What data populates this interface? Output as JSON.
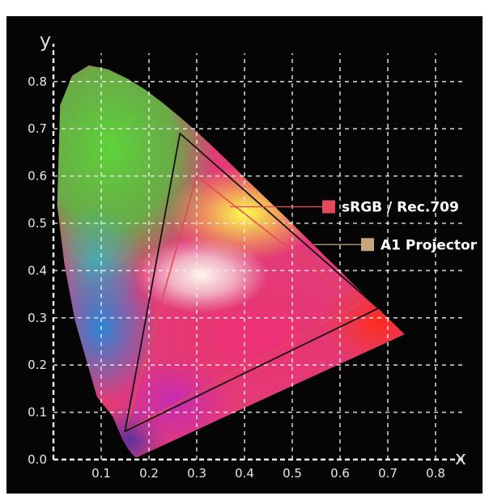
{
  "chart_data": {
    "type": "scatter",
    "title": "",
    "xlabel": "x",
    "ylabel": "y",
    "xlim": [
      0,
      0.8
    ],
    "ylim": [
      0,
      0.85
    ],
    "x_ticks": [
      0.1,
      0.2,
      0.3,
      0.4,
      0.5,
      0.6,
      0.7,
      0.8
    ],
    "y_ticks": [
      0.0,
      0.1,
      0.2,
      0.3,
      0.4,
      0.5,
      0.6,
      0.7,
      0.8
    ],
    "x_tick_labels": [
      "0.1",
      "0.2",
      "0.3",
      "0.4",
      "0.5",
      "0.6",
      "0.7",
      "0.8"
    ],
    "y_tick_labels": [
      "0.0",
      "0.1",
      "0.2",
      "0.3",
      "0.4",
      "0.5",
      "0.6",
      "0.7",
      "0.8"
    ],
    "grid": true,
    "spectral_locus": [
      [
        0.175,
        0.005
      ],
      [
        0.172,
        0.005
      ],
      [
        0.167,
        0.009
      ],
      [
        0.156,
        0.023
      ],
      [
        0.144,
        0.044
      ],
      [
        0.124,
        0.091
      ],
      [
        0.091,
        0.133
      ],
      [
        0.045,
        0.295
      ],
      [
        0.023,
        0.413
      ],
      [
        0.008,
        0.538
      ],
      [
        0.014,
        0.75
      ],
      [
        0.039,
        0.812
      ],
      [
        0.074,
        0.834
      ],
      [
        0.114,
        0.826
      ],
      [
        0.155,
        0.806
      ],
      [
        0.193,
        0.782
      ],
      [
        0.23,
        0.754
      ],
      [
        0.266,
        0.724
      ],
      [
        0.302,
        0.692
      ],
      [
        0.337,
        0.659
      ],
      [
        0.373,
        0.624
      ],
      [
        0.408,
        0.589
      ],
      [
        0.444,
        0.554
      ],
      [
        0.479,
        0.52
      ],
      [
        0.513,
        0.486
      ],
      [
        0.545,
        0.454
      ],
      [
        0.575,
        0.424
      ],
      [
        0.603,
        0.397
      ],
      [
        0.627,
        0.372
      ],
      [
        0.648,
        0.351
      ],
      [
        0.666,
        0.334
      ],
      [
        0.68,
        0.32
      ],
      [
        0.691,
        0.308
      ],
      [
        0.701,
        0.299
      ],
      [
        0.735,
        0.265
      ]
    ],
    "series": [
      {
        "name": "sRGB / Rec.709",
        "color": "#e04a5a",
        "points": [
          [
            0.64,
            0.33
          ],
          [
            0.3,
            0.6
          ],
          [
            0.15,
            0.06
          ]
        ]
      },
      {
        "name": "A1 Projector",
        "color": "#c9a77c",
        "points": [
          [
            0.68,
            0.32
          ],
          [
            0.265,
            0.69
          ],
          [
            0.15,
            0.06
          ]
        ]
      }
    ],
    "legend": [
      {
        "label": "sRGB / Rec.709",
        "color": "#e04a5a"
      },
      {
        "label": "A1 Projector",
        "color": "#c9a77c"
      }
    ]
  }
}
